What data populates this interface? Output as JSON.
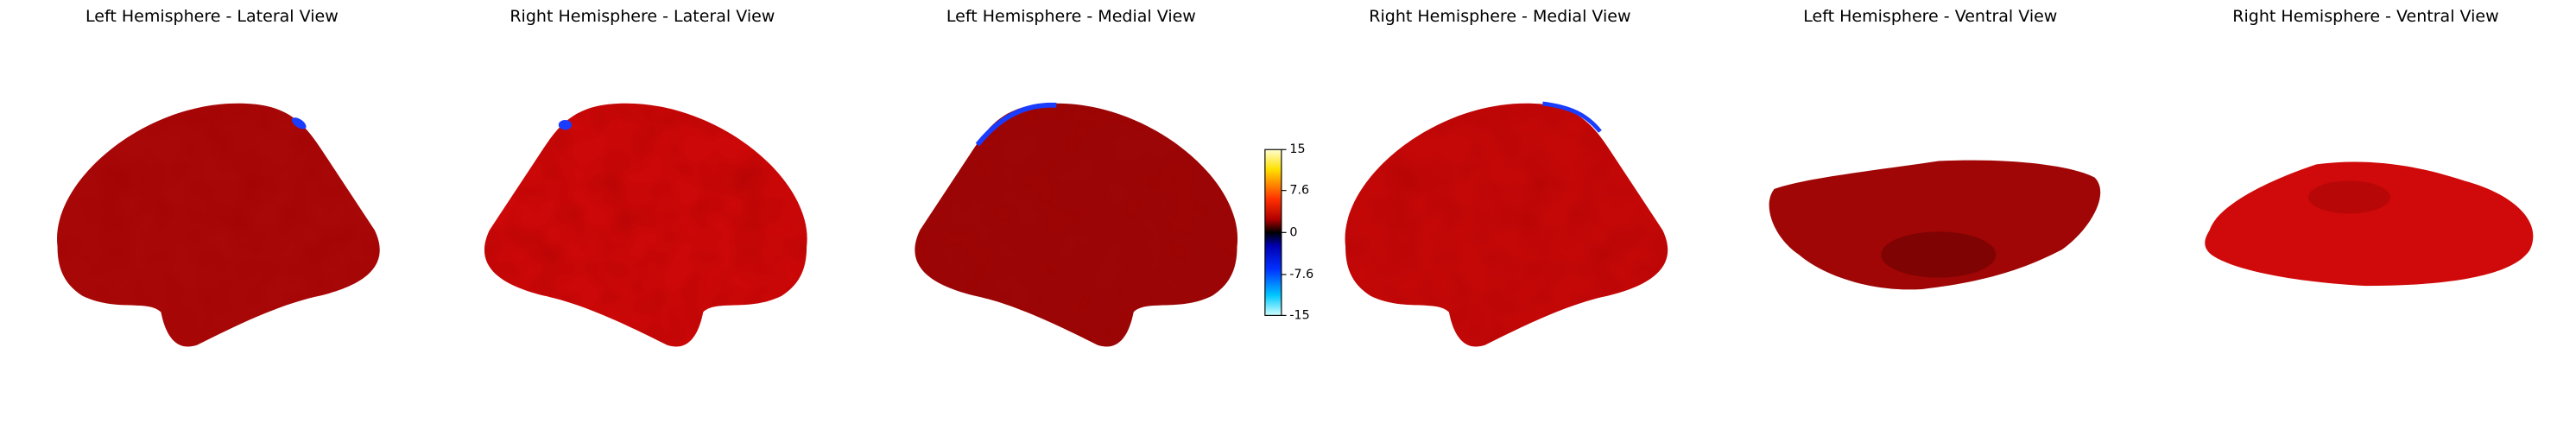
{
  "panels": [
    {
      "title": "Left Hemisphere - Lateral View"
    },
    {
      "title": "Right Hemisphere - Lateral View"
    },
    {
      "title": "Left Hemisphere - Medial View"
    },
    {
      "title": "Right Hemisphere - Medial View"
    },
    {
      "title": "Left Hemisphere - Ventral View"
    },
    {
      "title": "Right Hemisphere - Ventral View"
    }
  ],
  "colorbar": {
    "lim": [
      -15,
      15
    ],
    "ticks": [
      15,
      7.6,
      0,
      -7.6,
      -15
    ]
  }
}
